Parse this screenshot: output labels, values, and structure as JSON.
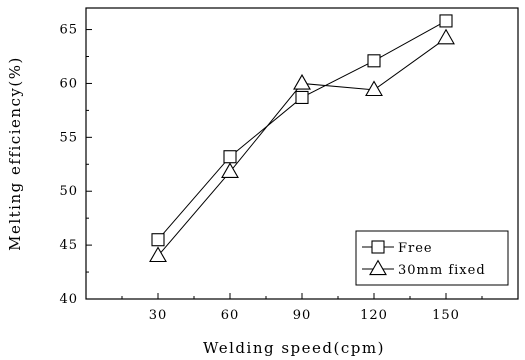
{
  "chart_data": {
    "type": "line",
    "xlabel": "Welding speed(cpm)",
    "ylabel": "Melting efficiency(%)",
    "x": [
      30,
      60,
      90,
      120,
      150
    ],
    "x_ticks": [
      "30",
      "60",
      "90",
      "120",
      "150"
    ],
    "y_ticks": [
      "40",
      "45",
      "50",
      "55",
      "60",
      "65"
    ],
    "xlim": [
      0,
      180
    ],
    "ylim": [
      40,
      67
    ],
    "grid": false,
    "legend_position": "bottom-right",
    "series": [
      {
        "name": "Free",
        "marker": "square",
        "values": [
          45.5,
          53.2,
          58.7,
          62.1,
          65.8
        ]
      },
      {
        "name": "30mm fixed",
        "marker": "triangle",
        "values": [
          44.0,
          51.8,
          60.0,
          59.4,
          64.2
        ]
      }
    ]
  }
}
